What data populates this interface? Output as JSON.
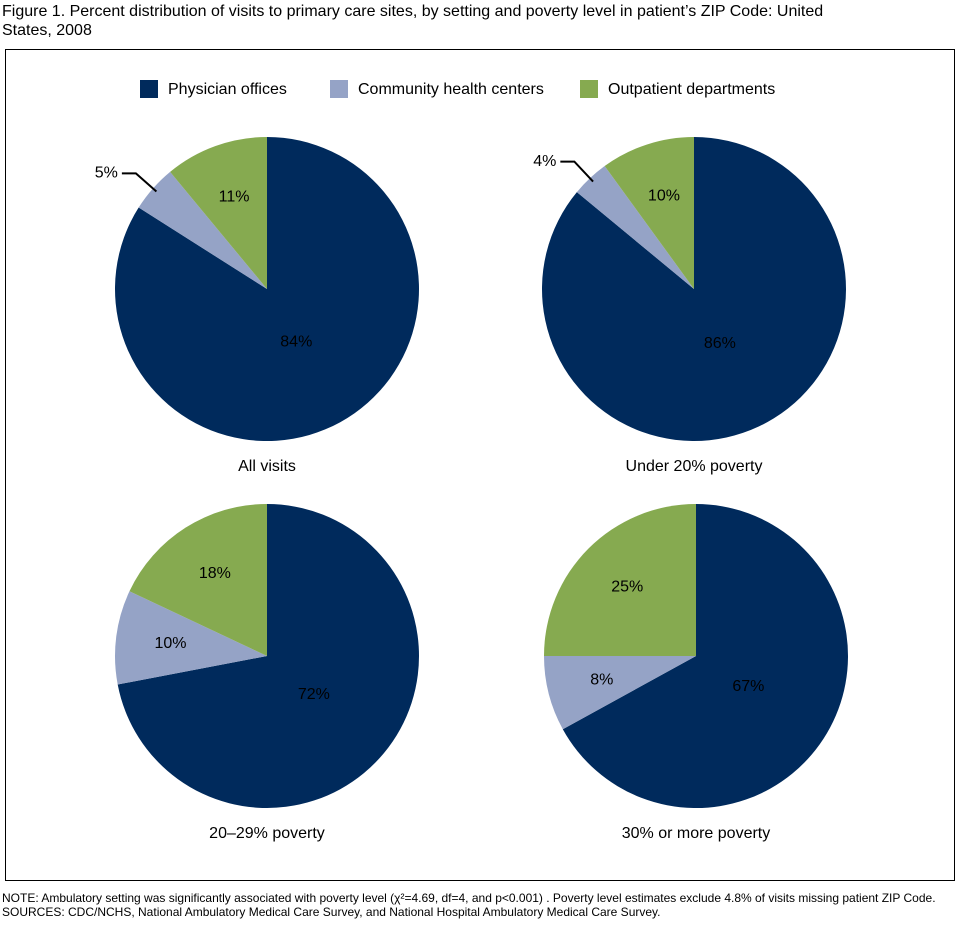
{
  "title": "Figure 1. Percent distribution of visits to primary care sites, by setting and poverty level in patient’s ZIP Code: United States, 2008",
  "legend": {
    "series": [
      {
        "name": "Physician offices",
        "color": "#002a5c"
      },
      {
        "name": "Community health centers",
        "color": "#95a3c6"
      },
      {
        "name": "Outpatient departments",
        "color": "#86aa50"
      }
    ]
  },
  "chart_data": [
    {
      "type": "pie",
      "label": "All visits",
      "values": [
        84,
        5,
        11
      ],
      "value_labels": [
        "84%",
        "5%",
        "11%"
      ]
    },
    {
      "type": "pie",
      "label": "Under 20% poverty",
      "values": [
        86,
        4,
        10
      ],
      "value_labels": [
        "86%",
        "4%",
        "10%"
      ]
    },
    {
      "type": "pie",
      "label": "20–29% poverty",
      "values": [
        72,
        10,
        18
      ],
      "value_labels": [
        "72%",
        "10%",
        "18%"
      ]
    },
    {
      "type": "pie",
      "label": "30% or more poverty",
      "values": [
        67,
        8,
        25
      ],
      "value_labels": [
        "67%",
        "8%",
        "25%"
      ]
    }
  ],
  "notes": [
    "NOTE: Ambulatory setting was significantly associated with poverty level (χ²=4.69, df=4, and p<0.001) . Poverty level estimates exclude 4.8% of visits missing patient ZIP Code.",
    "SOURCES: CDC/NCHS, National Ambulatory Medical Care Survey, and National Hospital Ambulatory Medical Care Survey."
  ]
}
